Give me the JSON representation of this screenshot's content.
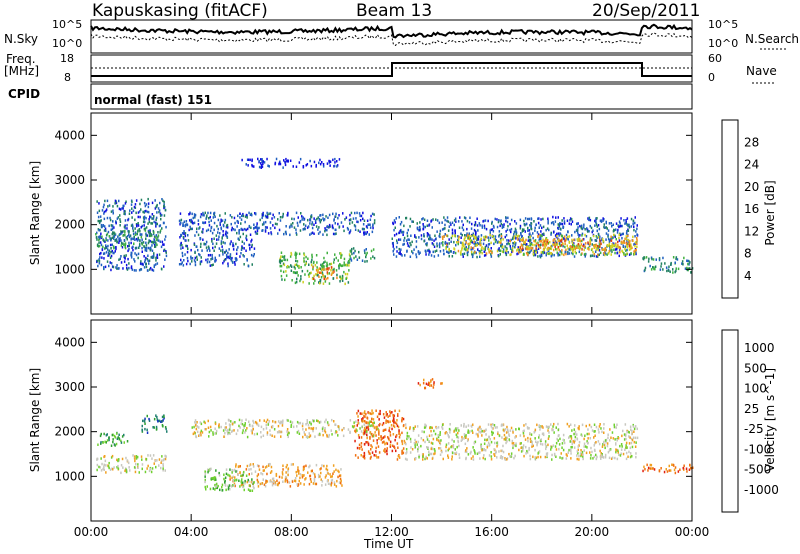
{
  "header": {
    "station": "Kapuskasing (fitACF)",
    "beam": "Beam 13",
    "date": "20/Sep/2011"
  },
  "panels": {
    "nsky_label": "N.Sky",
    "nsearch_label": "N.Search",
    "freq_label_1": "Freq.",
    "freq_label_2": "[MHz]",
    "nave_label": "Nave",
    "cpid_label": "CPID",
    "cpid_value": "normal (fast) 151",
    "nsky_ticks": [
      "10^5",
      "10^0"
    ],
    "nsearch_ticks": [
      "10^5",
      "10^0"
    ],
    "freq_ticks": [
      "18",
      "8"
    ],
    "nave_ticks": [
      "60",
      "0"
    ]
  },
  "chart_data": [
    {
      "type": "heatmap",
      "name": "power",
      "ylabel": "Slant Range [km]",
      "ylim": [
        0,
        4500
      ],
      "yticks": [
        "1000",
        "2000",
        "3000",
        "4000"
      ],
      "colorbar_label": "Power [dB]",
      "colorbar_ticks": [
        "4",
        "8",
        "12",
        "16",
        "20",
        "24",
        "28"
      ],
      "colors": [
        "#1010e0",
        "#2060c0",
        "#208060",
        "#40b040",
        "#d0d020",
        "#f09020",
        "#e04010",
        "#e01010"
      ],
      "regions": [
        {
          "t0": 0.2,
          "t1": 3.0,
          "r0": 1000,
          "r1": 2600,
          "level": 1
        },
        {
          "t0": 0.1,
          "t1": 2.8,
          "r0": 1500,
          "r1": 1900,
          "level": 2
        },
        {
          "t0": 3.5,
          "t1": 6.5,
          "r0": 1100,
          "r1": 2300,
          "level": 1
        },
        {
          "t0": 6.5,
          "t1": 11.3,
          "r0": 1800,
          "r1": 2300,
          "level": 1
        },
        {
          "t0": 7.5,
          "t1": 10.3,
          "r0": 700,
          "r1": 1400,
          "level": 3
        },
        {
          "t0": 8.8,
          "t1": 9.8,
          "r0": 800,
          "r1": 1100,
          "level": 5
        },
        {
          "t0": 10.3,
          "t1": 11.3,
          "r0": 1200,
          "r1": 1500,
          "level": 2
        },
        {
          "t0": 12.0,
          "t1": 21.8,
          "r0": 1300,
          "r1": 2200,
          "level": 1
        },
        {
          "t0": 14.0,
          "t1": 21.8,
          "r0": 1350,
          "r1": 1800,
          "level": 4
        },
        {
          "t0": 17.0,
          "t1": 21.8,
          "r0": 1450,
          "r1": 1700,
          "level": 5
        },
        {
          "t0": 22.0,
          "t1": 24.0,
          "r0": 950,
          "r1": 1300,
          "level": 2
        },
        {
          "t0": 6.0,
          "t1": 10.0,
          "r0": 3300,
          "r1": 3500,
          "level": 0
        }
      ]
    },
    {
      "type": "heatmap",
      "name": "velocity",
      "ylabel": "Slant Range [km]",
      "ylim": [
        0,
        4500
      ],
      "yticks": [
        "1000",
        "2000",
        "3000",
        "4000"
      ],
      "colorbar_label": "Velocity [m s^-1]",
      "colorbar_ticks": [
        "1000",
        "500",
        "100",
        "25",
        "-25",
        "-100",
        "-500",
        "-1000"
      ],
      "colors": [
        "#1030c0",
        "#208070",
        "#30a030",
        "#70d030",
        "#c8c8c0",
        "#f0a020",
        "#f07010",
        "#e02010"
      ],
      "regions": [
        {
          "t0": 0.2,
          "t1": 3.0,
          "r0": 1100,
          "r1": 1500,
          "level": 4
        },
        {
          "t0": 0.2,
          "t1": 1.5,
          "r0": 1700,
          "r1": 2000,
          "level": 2
        },
        {
          "t0": 2.0,
          "t1": 3.0,
          "r0": 2000,
          "r1": 2400,
          "level": 1
        },
        {
          "t0": 4.0,
          "t1": 11.5,
          "r0": 1900,
          "r1": 2300,
          "level": 4
        },
        {
          "t0": 5.5,
          "t1": 10.0,
          "r0": 800,
          "r1": 1300,
          "level": 5
        },
        {
          "t0": 4.5,
          "t1": 6.5,
          "r0": 700,
          "r1": 1200,
          "level": 3
        },
        {
          "t0": 10.5,
          "t1": 12.5,
          "r0": 1400,
          "r1": 2500,
          "level": 6
        },
        {
          "t0": 12.5,
          "t1": 21.8,
          "r0": 1400,
          "r1": 2200,
          "level": 4
        },
        {
          "t0": 13.0,
          "t1": 14.0,
          "r0": 3000,
          "r1": 3200,
          "level": 6
        },
        {
          "t0": 22.0,
          "t1": 24.0,
          "r0": 1100,
          "r1": 1300,
          "level": 6
        }
      ]
    }
  ],
  "xaxis": {
    "label": "Time UT",
    "ticks": [
      "00:00",
      "04:00",
      "08:00",
      "12:00",
      "16:00",
      "20:00",
      "00:00"
    ]
  }
}
